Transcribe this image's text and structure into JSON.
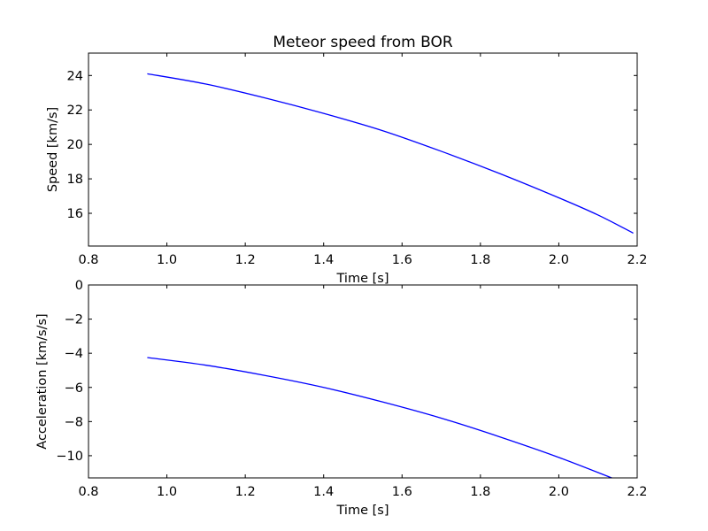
{
  "chart_data": [
    {
      "type": "line",
      "title": "Meteor speed from  BOR",
      "xlabel": "Time [s]",
      "ylabel": "Speed [km/s]",
      "xlim": [
        0.8,
        2.2
      ],
      "ylim": [
        14.1,
        25.3
      ],
      "xticks": [
        0.8,
        1.0,
        1.2,
        1.4,
        1.6,
        1.8,
        2.0,
        2.2
      ],
      "xtick_labels": [
        "0.8",
        "1.0",
        "1.2",
        "1.4",
        "1.6",
        "1.8",
        "2.0",
        "2.2"
      ],
      "yticks": [
        16,
        18,
        20,
        22,
        24
      ],
      "ytick_labels": [
        "16",
        "18",
        "20",
        "22",
        "24"
      ],
      "grid": false,
      "series": [
        {
          "color": "#0000ff",
          "x": [
            0.95,
            1.1,
            1.25,
            1.4,
            1.55,
            1.7,
            1.85,
            2.0,
            2.1,
            2.19
          ],
          "y": [
            24.1,
            23.5,
            22.7,
            21.8,
            20.8,
            19.6,
            18.3,
            16.9,
            15.9,
            14.85
          ]
        }
      ]
    },
    {
      "type": "line",
      "title": "",
      "xlabel": "Time [s]",
      "ylabel": "Acceleration [km/s/s]",
      "xlim": [
        0.8,
        2.2
      ],
      "ylim": [
        -11.3,
        0
      ],
      "xticks": [
        0.8,
        1.0,
        1.2,
        1.4,
        1.6,
        1.8,
        2.0,
        2.2
      ],
      "xtick_labels": [
        "0.8",
        "1.0",
        "1.2",
        "1.4",
        "1.6",
        "1.8",
        "2.0",
        "2.2"
      ],
      "yticks": [
        0,
        -2,
        -4,
        -6,
        -8,
        -10
      ],
      "ytick_labels": [
        "0",
        "−2",
        "−4",
        "−6",
        "−8",
        "−10"
      ],
      "grid": false,
      "series": [
        {
          "color": "#0000ff",
          "x": [
            0.95,
            1.1,
            1.25,
            1.4,
            1.55,
            1.7,
            1.85,
            2.0,
            2.135
          ],
          "y": [
            -4.25,
            -4.7,
            -5.3,
            -6.0,
            -6.85,
            -7.8,
            -8.9,
            -10.1,
            -11.3
          ]
        }
      ]
    }
  ]
}
